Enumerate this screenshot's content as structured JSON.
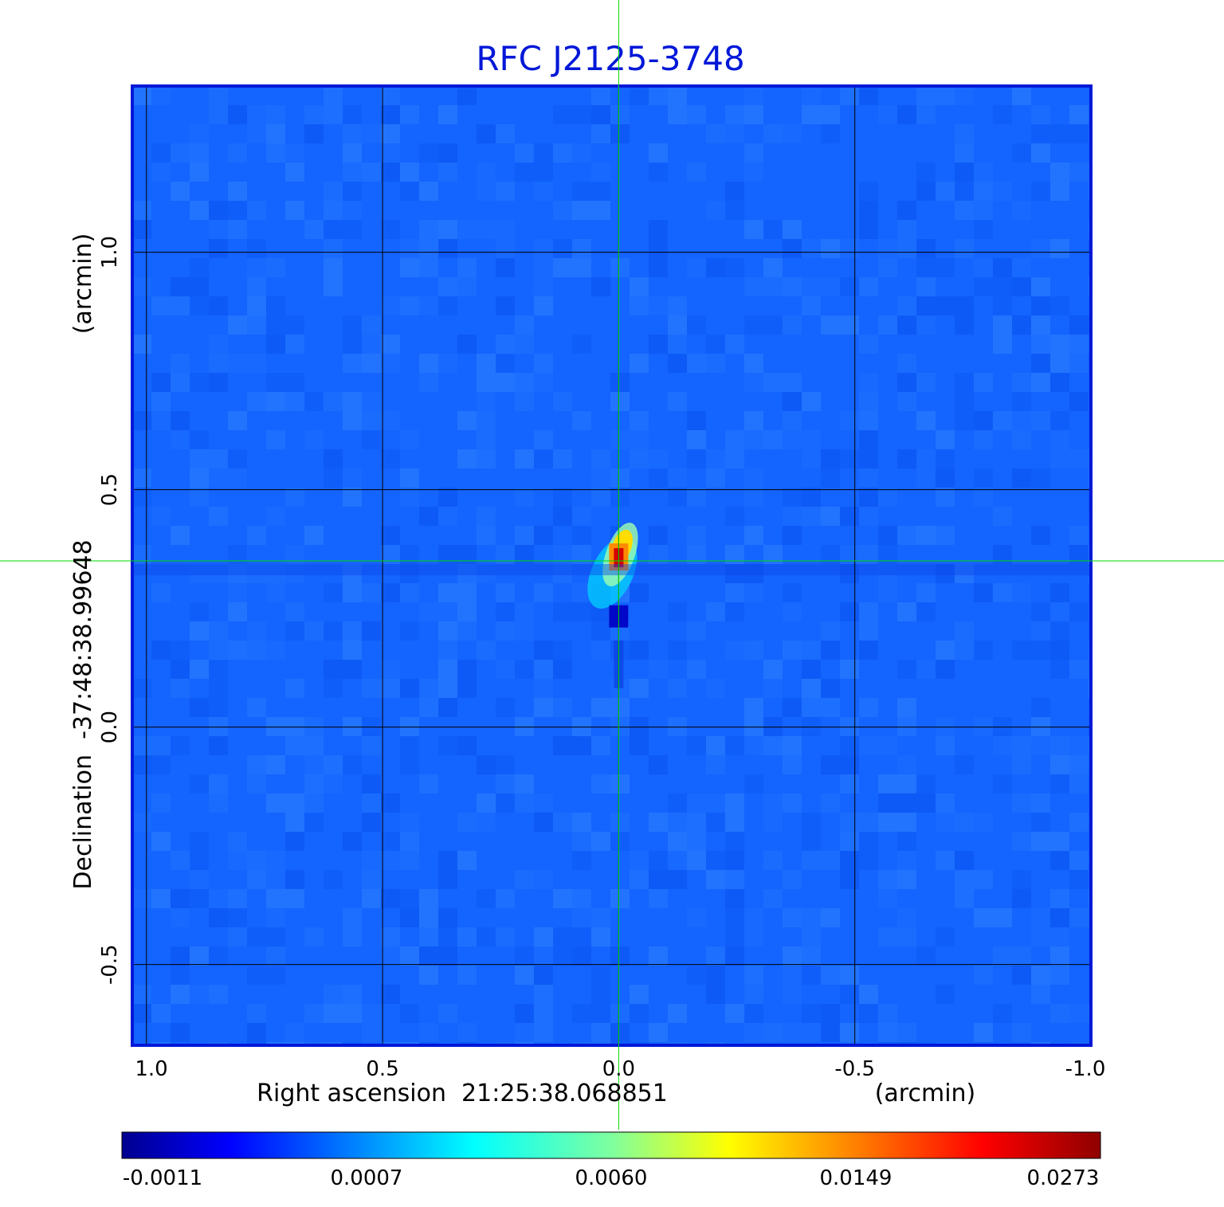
{
  "chart_data": {
    "type": "heatmap",
    "title": "RFC J2125-3748",
    "xlabel": "Right ascension  21:25:38.068851",
    "x_unit": "(arcmin)",
    "ylabel": "Declination  -37:48:38.99648",
    "y_unit": "(arcmin)",
    "xlim": [
      1.03,
      -1.0
    ],
    "ylim": [
      -0.67,
      1.35
    ],
    "x_ticks": [
      1.0,
      0.5,
      0.0,
      -0.5,
      -1.0
    ],
    "x_tick_labels": [
      "1.0",
      "0.5",
      "0.0",
      "-0.5",
      "-1.0"
    ],
    "y_ticks": [
      1.0,
      0.5,
      0.0,
      -0.5
    ],
    "y_tick_labels": [
      "1.0",
      "0.5",
      "0.0",
      "-0.5"
    ],
    "grid": true,
    "crosshair": {
      "x": 0.0,
      "y": 0.35
    },
    "colormap": "jet",
    "colorbar": {
      "orientation": "horizontal",
      "placement": "bottom",
      "tick_labels": [
        "-0.0011",
        "0.0007",
        "0.0060",
        "0.0149",
        "0.0273"
      ]
    },
    "source": {
      "peak_flux": 0.0273,
      "peak_position": {
        "x": 0.0,
        "y": 0.35
      },
      "negative_sidelobe": {
        "x": 0.0,
        "y": 0.25,
        "value": -0.0011
      },
      "extension_direction": "north-east"
    },
    "background_level": 0.0
  },
  "colors": {
    "title": "#0018d8",
    "frame": "#0018d8",
    "grid": "#000000",
    "crosshair": "#00dd00",
    "text": "#000000",
    "background": "#1464ff"
  }
}
